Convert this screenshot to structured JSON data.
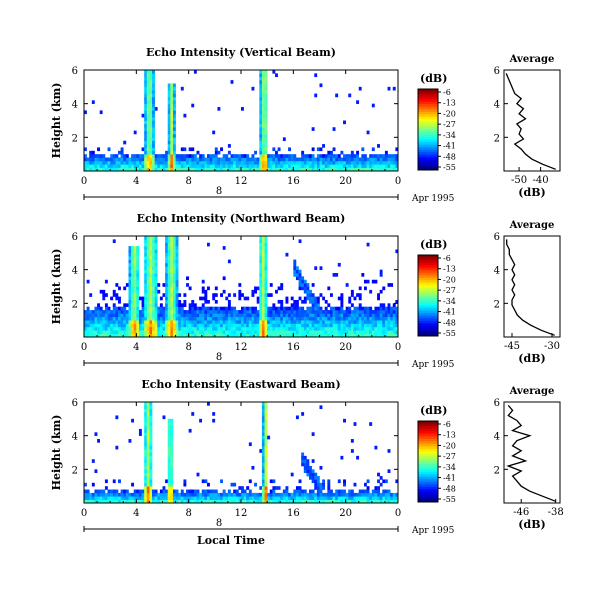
{
  "figure": {
    "date_label": "Apr 1995",
    "xlabel": "Local Time",
    "color_unit": "(dB)",
    "avg_title": "Average",
    "avg_xlabel": "(dB)",
    "ylabel": "Height (km)"
  },
  "chart_data": [
    {
      "type": "heatmap",
      "title": "Echo Intensity (Vertical Beam)",
      "xlabel": "",
      "ylabel": "Height (km)",
      "xlim": [
        0,
        24
      ],
      "xticks": [
        "0",
        "4",
        "8",
        "12",
        "16",
        "20",
        "0"
      ],
      "ylim": [
        0,
        6
      ],
      "yticks": [
        "2",
        "4",
        "6"
      ],
      "date_axis": {
        "label": "Apr 1995",
        "tick": "8"
      },
      "colorbar": {
        "unit": "(dB)",
        "levels": [
          "-6",
          "-13",
          "-20",
          "-27",
          "-34",
          "-41",
          "-48",
          "-55"
        ]
      },
      "profile": {
        "title": "Average",
        "xlabel": "(dB)",
        "xlim": [
          -57,
          -31
        ],
        "xticks": [
          "-50",
          "-40"
        ],
        "ylim": [
          0,
          6
        ],
        "yticks": [
          "2",
          "4",
          "6"
        ],
        "z": [
          0.1,
          0.4,
          0.7,
          1.0,
          1.3,
          1.6,
          1.9,
          2.2,
          2.5,
          2.8,
          3.1,
          3.4,
          3.7,
          4.0,
          4.3,
          4.6,
          4.9,
          5.2,
          5.5,
          5.8
        ],
        "values": [
          -33,
          -39,
          -44,
          -47,
          -49,
          -52,
          -48,
          -50,
          -49,
          -51,
          -47,
          -50,
          -48,
          -51,
          -49,
          -52,
          -53,
          -54,
          -55,
          -56
        ]
      }
    },
    {
      "type": "heatmap",
      "title": "Echo Intensity (Northward Beam)",
      "xlabel": "",
      "ylabel": "Height (km)",
      "xlim": [
        0,
        24
      ],
      "xticks": [
        "0",
        "4",
        "8",
        "12",
        "16",
        "20",
        "0"
      ],
      "ylim": [
        0,
        6
      ],
      "yticks": [
        "2",
        "4",
        "6"
      ],
      "date_axis": {
        "label": "Apr 1995",
        "tick": "8"
      },
      "colorbar": {
        "unit": "(dB)",
        "levels": [
          "-6",
          "-13",
          "-20",
          "-27",
          "-34",
          "-41",
          "-48",
          "-55"
        ]
      },
      "profile": {
        "title": "Average",
        "xlabel": "(dB)",
        "xlim": [
          -48,
          -27
        ],
        "xticks": [
          "-45",
          "-30"
        ],
        "ylim": [
          0,
          6
        ],
        "yticks": [
          "2",
          "4",
          "6"
        ],
        "z": [
          0.1,
          0.4,
          0.7,
          1.0,
          1.3,
          1.6,
          1.9,
          2.2,
          2.5,
          2.8,
          3.1,
          3.4,
          3.7,
          4.0,
          4.3,
          4.6,
          4.9,
          5.2,
          5.5,
          5.8
        ],
        "values": [
          -29,
          -34,
          -38,
          -41,
          -43,
          -44,
          -45,
          -45,
          -44,
          -45,
          -44,
          -45,
          -44,
          -45,
          -44,
          -45,
          -46,
          -46,
          -47,
          -47
        ]
      }
    },
    {
      "type": "heatmap",
      "title": "Echo Intensity (Eastward Beam)",
      "xlabel": "Local Time",
      "ylabel": "Height (km)",
      "xlim": [
        0,
        24
      ],
      "xticks": [
        "0",
        "4",
        "8",
        "12",
        "16",
        "20",
        "0"
      ],
      "ylim": [
        0,
        6
      ],
      "yticks": [
        "2",
        "4",
        "6"
      ],
      "date_axis": {
        "label": "Apr 1995",
        "tick": "8"
      },
      "colorbar": {
        "unit": "(dB)",
        "levels": [
          "-6",
          "-13",
          "-20",
          "-27",
          "-34",
          "-41",
          "-48",
          "-55"
        ]
      },
      "profile": {
        "title": "Average",
        "xlabel": "(dB)",
        "xlim": [
          -50,
          -37
        ],
        "xticks": [
          "-46",
          "-38"
        ],
        "ylim": [
          0,
          6
        ],
        "yticks": [
          "2",
          "4",
          "6"
        ],
        "z": [
          0.1,
          0.4,
          0.7,
          1.0,
          1.3,
          1.6,
          1.9,
          2.2,
          2.5,
          2.8,
          3.1,
          3.4,
          3.7,
          4.0,
          4.3,
          4.6,
          4.9,
          5.2,
          5.5,
          5.8
        ],
        "values": [
          -38,
          -41,
          -44,
          -46,
          -47,
          -48,
          -46,
          -49,
          -45,
          -48,
          -46,
          -48,
          -47,
          -44,
          -48,
          -46,
          -47,
          -49,
          -48,
          -49
        ]
      }
    }
  ]
}
